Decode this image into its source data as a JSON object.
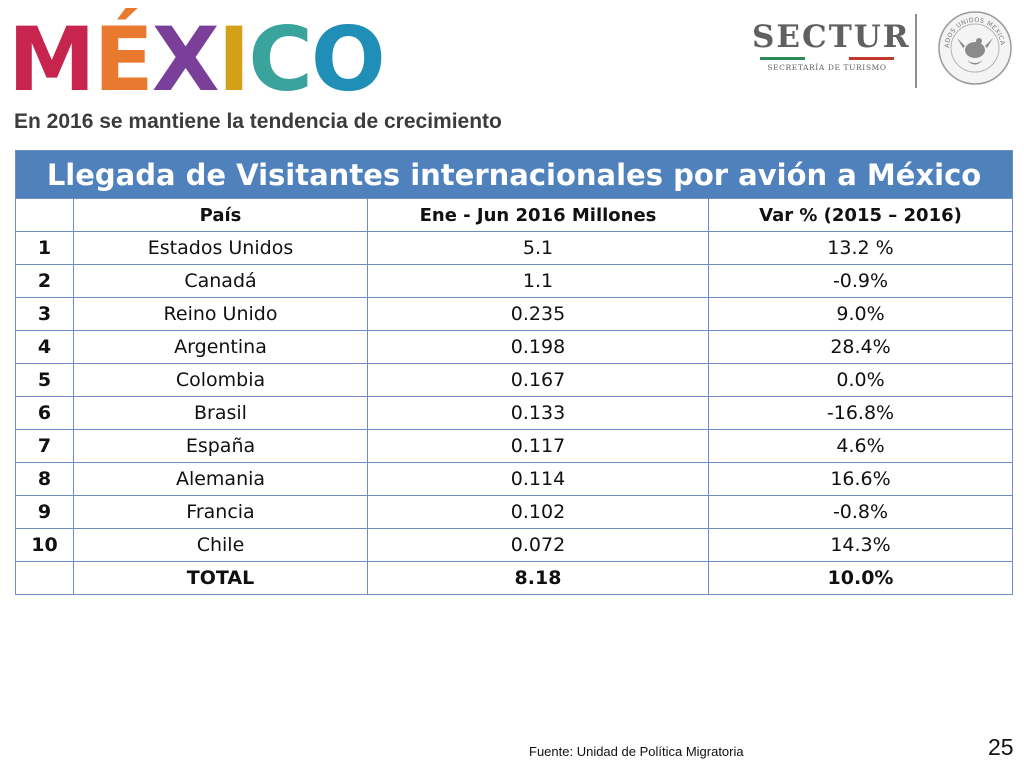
{
  "logos": {
    "mexico_letters": [
      "M",
      "É",
      "X",
      "I",
      "C",
      "O"
    ],
    "mexico_colors": [
      "#c7254e",
      "#e8792f",
      "#7a3f98",
      "#d4a017",
      "#3aa39b",
      "#1f8fb7"
    ],
    "sectur_text": "SECTUR",
    "sectur_subtitle": "SECRETARÍA DE TURISMO",
    "sectur_stripe_colors": [
      "#2e8b57",
      "#ffffff",
      "#c0392b"
    ],
    "seal_text": "ESTADOS UNIDOS MEXICANOS"
  },
  "subtitle": "En 2016 se mantiene la tendencia de crecimiento",
  "table": {
    "title": "Llegada de Visitantes internacionales por avión a México",
    "headers": {
      "rank": "",
      "country": "País",
      "value": "Ene - Jun 2016 Millones",
      "variation": "Var % (2015 – 2016)"
    },
    "rows": [
      {
        "rank": "1",
        "country": "Estados Unidos",
        "value": "5.1",
        "variation": "13.2 %"
      },
      {
        "rank": "2",
        "country": "Canadá",
        "value": "1.1",
        "variation": "-0.9%"
      },
      {
        "rank": "3",
        "country": "Reino Unido",
        "value": "0.235",
        "variation": "9.0%"
      },
      {
        "rank": "4",
        "country": "Argentina",
        "value": "0.198",
        "variation": "28.4%"
      },
      {
        "rank": "5",
        "country": "Colombia",
        "value": "0.167",
        "variation": "0.0%"
      },
      {
        "rank": "6",
        "country": "Brasil",
        "value": "0.133",
        "variation": "-16.8%"
      },
      {
        "rank": "7",
        "country": "España",
        "value": "0.117",
        "variation": "4.6%"
      },
      {
        "rank": "8",
        "country": "Alemania",
        "value": "0.114",
        "variation": "16.6%"
      },
      {
        "rank": "9",
        "country": "Francia",
        "value": "0.102",
        "variation": "-0.8%"
      },
      {
        "rank": "10",
        "country": "Chile",
        "value": "0.072",
        "variation": "14.3%"
      }
    ],
    "total": {
      "label": "TOTAL",
      "value": "8.18",
      "variation": "10.0%"
    }
  },
  "footer": {
    "source": "Fuente:  Unidad de Política Migratoria",
    "page_number": "25"
  }
}
